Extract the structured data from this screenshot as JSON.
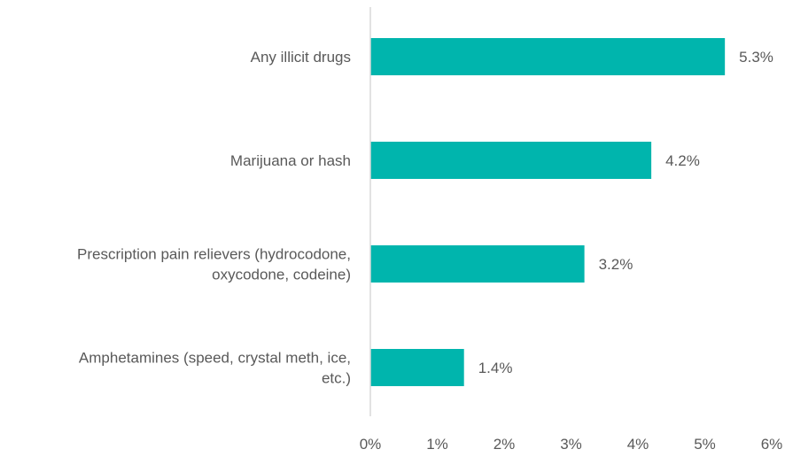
{
  "chart_data": {
    "type": "bar",
    "orientation": "horizontal",
    "categories": [
      [
        "Any illicit drugs"
      ],
      [
        "Marijuana or hash"
      ],
      [
        "Prescription pain relievers (hydrocodone,",
        "oxycodone, codeine)"
      ],
      [
        "Amphetamines (speed, crystal meth, ice,",
        "etc.)"
      ]
    ],
    "values": [
      5.3,
      4.2,
      3.2,
      1.4
    ],
    "value_labels": [
      "5.3%",
      "4.2%",
      "3.2%",
      "1.4%"
    ],
    "xlim": [
      0,
      6
    ],
    "xticks": [
      0,
      1,
      2,
      3,
      4,
      5,
      6
    ],
    "xtick_labels": [
      "0%",
      "1%",
      "2%",
      "3%",
      "4%",
      "5%",
      "6%"
    ],
    "bar_color": "#00B5AD",
    "axis_color": "#D9D9D9",
    "text_color": "#595959",
    "grid": false,
    "legend": "none"
  }
}
